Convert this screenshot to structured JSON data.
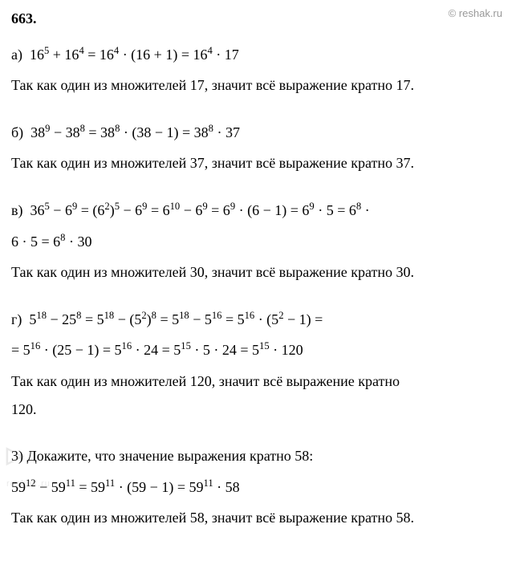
{
  "problem_number": "663.",
  "watermark_top": "© reshak.ru",
  "watermark_logo": {
    "play": "▷",
    "text": "reshak.ru"
  },
  "sections": {
    "a": {
      "label": "а)",
      "eq_parts": [
        "16",
        "5",
        " + 16",
        "4",
        " = 16",
        "4",
        " · (16 + 1) = 16",
        "4",
        " · 17"
      ],
      "text": "Так как один из множителей 17, значит всё выражение кратно 17."
    },
    "b": {
      "label": "б)",
      "eq_parts": [
        "38",
        "9",
        " − 38",
        "8",
        " = 38",
        "8",
        " · (38 − 1) = 38",
        "8",
        " · 37"
      ],
      "text": "Так как один из множителей 37, значит всё выражение кратно 37."
    },
    "v": {
      "label": "в)",
      "line1_parts": [
        "36",
        "5",
        " − 6",
        "9",
        " = (6",
        "2",
        ")",
        "5",
        " − 6",
        "9",
        " = 6",
        "10",
        " − 6",
        "9",
        " = 6",
        "9",
        " · (6 − 1) = 6",
        "9",
        " · 5 = 6",
        "8",
        " ·"
      ],
      "line2_parts": [
        "6 · 5 = 6",
        "8",
        " · 30"
      ],
      "text": "Так как один из множителей 30, значит всё выражение кратно 30."
    },
    "g": {
      "label": "г)",
      "line1_parts": [
        "5",
        "18",
        " − 25",
        "8",
        " = 5",
        "18",
        " − (5",
        "2",
        ")",
        "8",
        " = 5",
        "18",
        " − 5",
        "16",
        " = 5",
        "16",
        " · (5",
        "2",
        " − 1) ="
      ],
      "line2_parts": [
        "= 5",
        "16",
        " · (25 − 1) = 5",
        "16",
        " · 24 = 5",
        "15",
        " · 5 · 24 = 5",
        "15",
        " · 120"
      ],
      "text1": "Так как один из множителей 120, значит всё выражение кратно",
      "text2": "120."
    },
    "p3": {
      "label": "3)",
      "intro": "Докажите, что значение выражения кратно 58:",
      "eq_parts": [
        "59",
        "12",
        " − 59",
        "11",
        " = 59",
        "11",
        " · (59 − 1) = 59",
        "11",
        " · 58"
      ],
      "text": "Так как один из множителей 58, значит всё выражение кратно 58."
    }
  }
}
